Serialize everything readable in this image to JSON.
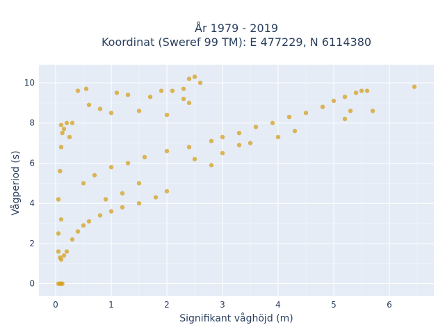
{
  "chart_data": {
    "type": "scatter",
    "title_line1": "År 1979 - 2019",
    "title_line2": "Koordinat (Sweref 99 TM): E 477229, N 6114380",
    "xlabel": "Signifikant våghöjd (m)",
    "ylabel": "Vågperiod (s)",
    "xlim": [
      -0.3,
      6.8
    ],
    "ylim": [
      -0.6,
      10.9
    ],
    "xticks": [
      0,
      1,
      2,
      3,
      4,
      5,
      6
    ],
    "yticks": [
      0,
      2,
      4,
      6,
      8,
      10
    ],
    "grid": true,
    "marker_color": "#D4A21F",
    "plot_background": "#E5ECF6",
    "series": [
      {
        "points": [
          [
            0.05,
            0.0
          ],
          [
            0.08,
            0.0
          ],
          [
            0.1,
            0.0
          ],
          [
            0.12,
            0.0
          ],
          [
            0.05,
            1.6
          ],
          [
            0.08,
            1.3
          ],
          [
            0.1,
            1.2
          ],
          [
            0.15,
            1.4
          ],
          [
            0.2,
            1.6
          ],
          [
            0.05,
            2.5
          ],
          [
            0.1,
            3.2
          ],
          [
            0.05,
            4.2
          ],
          [
            0.08,
            5.6
          ],
          [
            0.1,
            6.8
          ],
          [
            0.12,
            7.5
          ],
          [
            0.1,
            7.9
          ],
          [
            0.15,
            7.7
          ],
          [
            0.2,
            8.0
          ],
          [
            0.25,
            7.3
          ],
          [
            0.3,
            2.2
          ],
          [
            0.4,
            2.6
          ],
          [
            0.5,
            2.9
          ],
          [
            0.6,
            3.1
          ],
          [
            0.8,
            3.4
          ],
          [
            1.0,
            3.6
          ],
          [
            1.2,
            3.8
          ],
          [
            1.5,
            4.0
          ],
          [
            1.8,
            4.3
          ],
          [
            2.0,
            4.6
          ],
          [
            0.3,
            8.0
          ],
          [
            0.4,
            9.6
          ],
          [
            0.55,
            9.7
          ],
          [
            0.6,
            8.9
          ],
          [
            0.8,
            8.7
          ],
          [
            1.0,
            8.5
          ],
          [
            1.1,
            9.5
          ],
          [
            1.3,
            9.4
          ],
          [
            1.5,
            8.6
          ],
          [
            1.7,
            9.3
          ],
          [
            1.9,
            9.6
          ],
          [
            2.0,
            8.4
          ],
          [
            2.1,
            9.6
          ],
          [
            2.3,
            9.7
          ],
          [
            2.4,
            10.2
          ],
          [
            2.5,
            10.3
          ],
          [
            2.6,
            10.0
          ],
          [
            2.3,
            9.2
          ],
          [
            2.4,
            9.0
          ],
          [
            0.5,
            5.0
          ],
          [
            0.7,
            5.4
          ],
          [
            1.0,
            5.8
          ],
          [
            1.3,
            6.0
          ],
          [
            1.6,
            6.3
          ],
          [
            2.0,
            6.6
          ],
          [
            2.4,
            6.8
          ],
          [
            2.8,
            7.1
          ],
          [
            3.0,
            7.3
          ],
          [
            3.3,
            7.5
          ],
          [
            3.6,
            7.8
          ],
          [
            3.9,
            8.0
          ],
          [
            4.2,
            8.3
          ],
          [
            4.5,
            8.5
          ],
          [
            4.8,
            8.8
          ],
          [
            5.0,
            9.1
          ],
          [
            5.2,
            9.3
          ],
          [
            5.3,
            8.6
          ],
          [
            5.2,
            8.2
          ],
          [
            5.4,
            9.5
          ],
          [
            5.5,
            9.6
          ],
          [
            5.6,
            9.6
          ],
          [
            5.7,
            8.6
          ],
          [
            6.45,
            9.8
          ],
          [
            2.5,
            6.2
          ],
          [
            3.0,
            6.5
          ],
          [
            3.5,
            7.0
          ],
          [
            4.0,
            7.3
          ],
          [
            4.3,
            7.6
          ],
          [
            3.3,
            6.9
          ],
          [
            2.8,
            5.9
          ],
          [
            1.5,
            5.0
          ],
          [
            1.2,
            4.5
          ],
          [
            0.9,
            4.2
          ]
        ]
      }
    ]
  }
}
